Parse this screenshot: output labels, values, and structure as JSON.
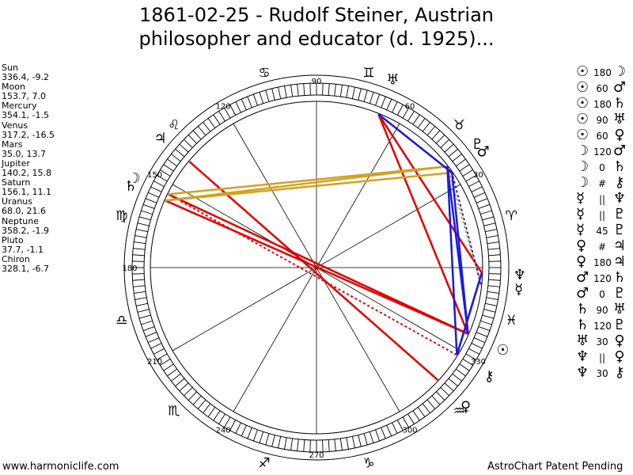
{
  "title": {
    "line1": "1861-02-25 - Rudolf Steiner, Austrian",
    "line2": "philosopher and educator (d. 1925)..."
  },
  "positions": [
    {
      "name": "Sun",
      "value": "336.4, -9.2"
    },
    {
      "name": "Moon",
      "value": "153.7, 7.0"
    },
    {
      "name": "Mercury",
      "value": "354.1, -1.5"
    },
    {
      "name": "Venus",
      "value": "317.2, -16.5"
    },
    {
      "name": "Mars",
      "value": "35.0, 13.7"
    },
    {
      "name": "Jupiter",
      "value": "140.2, 15.8"
    },
    {
      "name": "Saturn",
      "value": "156.1, 11.1"
    },
    {
      "name": "Uranus",
      "value": "68.0, 21.6"
    },
    {
      "name": "Neptune",
      "value": "358.2, -1.9"
    },
    {
      "name": "Pluto",
      "value": "37.7, -1.1"
    },
    {
      "name": "Chiron",
      "value": "328.1, -6.7"
    }
  ],
  "aspects": [
    {
      "p1": "☉",
      "angle": "180",
      "p2": "☽"
    },
    {
      "p1": "☉",
      "angle": "60",
      "p2": "♂"
    },
    {
      "p1": "☉",
      "angle": "180",
      "p2": "♄"
    },
    {
      "p1": "☉",
      "angle": "90",
      "p2": "♅"
    },
    {
      "p1": "☉",
      "angle": "60",
      "p2": "♀"
    },
    {
      "p1": "☽",
      "angle": "120",
      "p2": "♂"
    },
    {
      "p1": "☽",
      "angle": "0",
      "p2": "♄"
    },
    {
      "p1": "☽",
      "angle": "#",
      "p2": "⚷"
    },
    {
      "p1": "☿",
      "angle": "||",
      "p2": "♆"
    },
    {
      "p1": "☿",
      "angle": "||",
      "p2": "♇"
    },
    {
      "p1": "☿",
      "angle": "45",
      "p2": "♇"
    },
    {
      "p1": "♀",
      "angle": "#",
      "p2": "♃"
    },
    {
      "p1": "♀",
      "angle": "180",
      "p2": "♃"
    },
    {
      "p1": "♂",
      "angle": "120",
      "p2": "♄"
    },
    {
      "p1": "♂",
      "angle": "0",
      "p2": "♇"
    },
    {
      "p1": "♄",
      "angle": "90",
      "p2": "♅"
    },
    {
      "p1": "♄",
      "angle": "120",
      "p2": "♇"
    },
    {
      "p1": "♅",
      "angle": "30",
      "p2": "♀"
    },
    {
      "p1": "♆",
      "angle": "||",
      "p2": "♀"
    },
    {
      "p1": "♆",
      "angle": "30",
      "p2": "⚷"
    }
  ],
  "wheel": {
    "degree_labels": [
      {
        "deg": 30,
        "text": "30"
      },
      {
        "deg": 60,
        "text": "60"
      },
      {
        "deg": 90,
        "text": "90"
      },
      {
        "deg": 120,
        "text": "120"
      },
      {
        "deg": 150,
        "text": "150"
      },
      {
        "deg": 180,
        "text": "180"
      },
      {
        "deg": 210,
        "text": "210"
      },
      {
        "deg": 240,
        "text": "240"
      },
      {
        "deg": 270,
        "text": "270"
      },
      {
        "deg": 300,
        "text": "300"
      },
      {
        "deg": 330,
        "text": "330"
      }
    ],
    "signs": [
      {
        "deg": 15,
        "glyph": "♈"
      },
      {
        "deg": 45,
        "glyph": "♉"
      },
      {
        "deg": 75,
        "glyph": "♊"
      },
      {
        "deg": 105,
        "glyph": "♋"
      },
      {
        "deg": 135,
        "glyph": "♌"
      },
      {
        "deg": 165,
        "glyph": "♍"
      },
      {
        "deg": 195,
        "glyph": "♎"
      },
      {
        "deg": 225,
        "glyph": "♏"
      },
      {
        "deg": 255,
        "glyph": "♐"
      },
      {
        "deg": 285,
        "glyph": "♑"
      },
      {
        "deg": 315,
        "glyph": "♒"
      },
      {
        "deg": 345,
        "glyph": "♓"
      }
    ],
    "planets": [
      {
        "id": "sun",
        "glyph": "☉",
        "deg": 336.4
      },
      {
        "id": "moon",
        "glyph": "☽",
        "deg": 153.7
      },
      {
        "id": "mercury",
        "glyph": "☿",
        "deg": 354.1
      },
      {
        "id": "venus",
        "glyph": "♀",
        "deg": 317.2
      },
      {
        "id": "mars",
        "glyph": "♂",
        "deg": 35.0
      },
      {
        "id": "jupiter",
        "glyph": "♃",
        "deg": 140.2
      },
      {
        "id": "saturn",
        "glyph": "♄",
        "deg": 156.1
      },
      {
        "id": "uranus",
        "glyph": "♅",
        "deg": 68.0
      },
      {
        "id": "neptune",
        "glyph": "♆",
        "deg": 358.2
      },
      {
        "id": "pluto",
        "glyph": "♇",
        "deg": 37.7
      },
      {
        "id": "chiron",
        "glyph": "⚷",
        "deg": 328.1
      }
    ],
    "aspect_lines": [
      {
        "a": "sun",
        "b": "moon",
        "color": "#e00000",
        "style": "solid"
      },
      {
        "a": "sun",
        "b": "saturn",
        "color": "#e00000",
        "style": "solid"
      },
      {
        "a": "sun",
        "b": "uranus",
        "color": "#e00000",
        "style": "solid"
      },
      {
        "a": "venus",
        "b": "jupiter",
        "color": "#e00000",
        "style": "solid"
      },
      {
        "a": "venus",
        "b": "jupiter",
        "color": "#e00000",
        "style": "dotted"
      },
      {
        "a": "moon",
        "b": "chiron",
        "color": "#e00000",
        "style": "dotted"
      },
      {
        "a": "uranus",
        "b": "neptune",
        "color": "#e00000",
        "style": "solid"
      },
      {
        "a": "chiron",
        "b": "neptune",
        "color": "#e00000",
        "style": "solid"
      },
      {
        "a": "mars",
        "b": "saturn",
        "color": "#d4a020",
        "style": "solid"
      },
      {
        "a": "pluto",
        "b": "moon",
        "color": "#d4a020",
        "style": "solid"
      },
      {
        "a": "pluto",
        "b": "saturn",
        "color": "#d4a020",
        "style": "solid"
      },
      {
        "a": "pluto",
        "b": "mercury",
        "color": "#d4a020",
        "style": "dotted"
      },
      {
        "a": "sun",
        "b": "mars",
        "color": "#1a1ae0",
        "style": "solid"
      },
      {
        "a": "sun",
        "b": "pluto",
        "color": "#1a1ae0",
        "style": "solid"
      },
      {
        "a": "chiron",
        "b": "pluto",
        "color": "#1a1ae0",
        "style": "solid"
      },
      {
        "a": "neptune",
        "b": "chiron",
        "color": "#1a1ae0",
        "style": "solid"
      },
      {
        "a": "mars",
        "b": "uranus",
        "color": "#1a1ae0",
        "style": "solid"
      },
      {
        "a": "mercury",
        "b": "mars",
        "color": "#1a1ae0",
        "style": "dotted"
      }
    ]
  },
  "footer": {
    "left": "www.harmoniclife.com",
    "right": "AstroChart Patent Pending"
  }
}
